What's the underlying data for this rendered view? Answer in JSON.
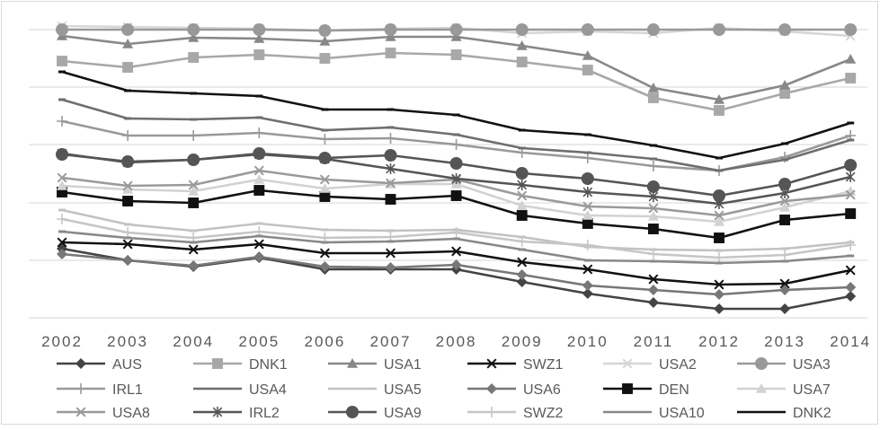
{
  "chart_data": {
    "type": "line",
    "title": "",
    "xlabel": "",
    "ylabel": "",
    "x": [
      "2002",
      "2003",
      "2004",
      "2005",
      "2006",
      "2007",
      "2008",
      "2009",
      "2010",
      "2011",
      "2012",
      "2013",
      "2014"
    ],
    "y_axis_labels_shown": false,
    "grid": true,
    "legend_position": "bottom",
    "series": [
      {
        "name": "AUS",
        "color": "#444444",
        "marker": "diamond",
        "values": [
          277,
          290,
          297,
          287,
          300,
          300,
          300,
          314,
          327,
          337,
          344,
          344,
          330
        ]
      },
      {
        "name": "DNK1",
        "color": "#a8a8a8",
        "marker": "square",
        "values": [
          68,
          75,
          64,
          61,
          65,
          59,
          61,
          69,
          78,
          109,
          123,
          104,
          87
        ]
      },
      {
        "name": "USA1",
        "color": "#888888",
        "marker": "triangle",
        "values": [
          40,
          49,
          42,
          43,
          46,
          41,
          41,
          51,
          62,
          98,
          111,
          95,
          66
        ]
      },
      {
        "name": "SWZ1",
        "color": "#111111",
        "marker": "x",
        "values": [
          270,
          272,
          278,
          272,
          282,
          282,
          280,
          292,
          300,
          311,
          317,
          316,
          301
        ]
      },
      {
        "name": "USA2",
        "color": "#d6d6d6",
        "marker": "x",
        "values": [
          29,
          30,
          31,
          32,
          34,
          32,
          31,
          37,
          35,
          37,
          31,
          35,
          40
        ]
      },
      {
        "name": "USA3",
        "color": "#999999",
        "marker": "circle",
        "values": [
          33,
          33,
          33,
          33,
          34,
          33,
          33,
          33,
          33,
          33,
          33,
          33,
          33
        ]
      },
      {
        "name": "IRL1",
        "color": "#999999",
        "marker": "plus",
        "values": [
          135,
          151,
          151,
          148,
          155,
          154,
          161,
          170,
          176,
          185,
          190,
          175,
          151
        ]
      },
      {
        "name": "USA4",
        "color": "#6e6e6e",
        "marker": "line",
        "values": [
          111,
          132,
          133,
          131,
          145,
          142,
          150,
          165,
          170,
          177,
          190,
          178,
          156
        ]
      },
      {
        "name": "USA5",
        "color": "#c2c2c2",
        "marker": "line",
        "values": [
          234,
          250,
          257,
          249,
          256,
          257,
          256,
          264,
          275,
          278,
          279,
          277,
          270
        ]
      },
      {
        "name": "USA6",
        "color": "#777777",
        "marker": "diamond",
        "values": [
          283,
          290,
          296,
          286,
          297,
          298,
          295,
          306,
          318,
          323,
          328,
          323,
          320
        ]
      },
      {
        "name": "DEN",
        "color": "#111111",
        "marker": "square",
        "values": [
          214,
          224,
          226,
          212,
          219,
          222,
          218,
          240,
          249,
          255,
          265,
          245,
          238
        ]
      },
      {
        "name": "USA7",
        "color": "#d2d2d2",
        "marker": "triangle",
        "values": [
          207,
          211,
          213,
          200,
          210,
          205,
          205,
          229,
          240,
          241,
          247,
          231,
          213
        ]
      },
      {
        "name": "USA8",
        "color": "#9a9a9a",
        "marker": "x",
        "values": [
          198,
          207,
          206,
          190,
          200,
          204,
          200,
          218,
          230,
          232,
          240,
          224,
          217
        ]
      },
      {
        "name": "IRL2",
        "color": "#555555",
        "marker": "asterisk",
        "values": [
          171,
          181,
          178,
          172,
          177,
          188,
          199,
          206,
          214,
          219,
          227,
          215,
          197
        ]
      },
      {
        "name": "USA9",
        "color": "#555555",
        "marker": "circle",
        "values": [
          172,
          180,
          178,
          171,
          176,
          173,
          182,
          193,
          199,
          208,
          218,
          205,
          184
        ]
      },
      {
        "name": "SWZ2",
        "color": "#c6c6c6",
        "marker": "plus",
        "values": [
          244,
          259,
          265,
          258,
          265,
          264,
          259,
          269,
          273,
          283,
          287,
          284,
          273
        ]
      },
      {
        "name": "USA10",
        "color": "#888888",
        "marker": "line",
        "values": [
          258,
          265,
          270,
          263,
          270,
          269,
          266,
          278,
          290,
          291,
          293,
          291,
          285
        ]
      },
      {
        "name": "DNK2",
        "color": "#111111",
        "marker": "line",
        "values": [
          80,
          101,
          104,
          107,
          122,
          122,
          128,
          145,
          150,
          162,
          176,
          160,
          137
        ]
      }
    ]
  }
}
